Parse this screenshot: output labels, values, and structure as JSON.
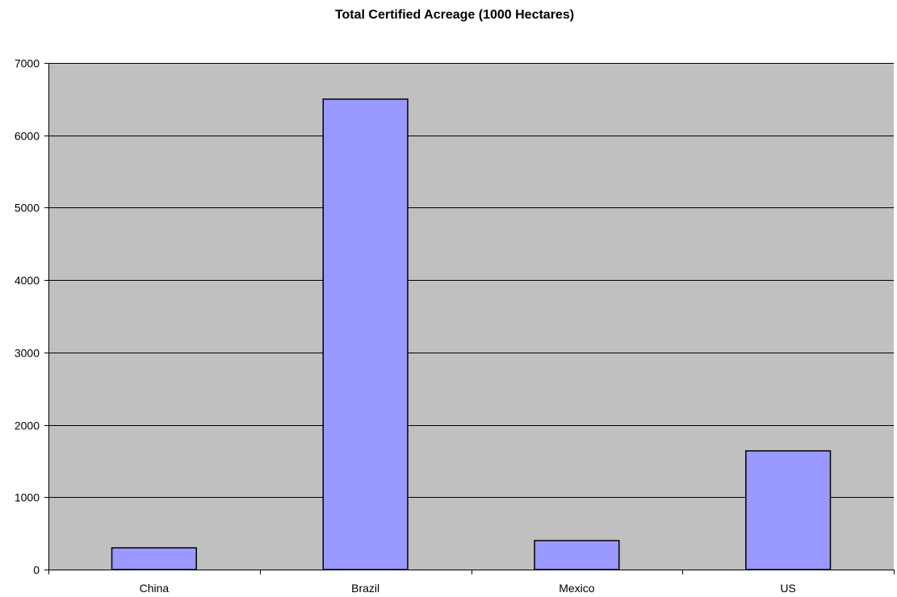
{
  "chart_data": {
    "type": "bar",
    "title": "Total Certified Acreage (1000 Hectares)",
    "xlabel": "",
    "ylabel": "",
    "categories": [
      "China",
      "Brazil",
      "Mexico",
      "US"
    ],
    "values": [
      300,
      6500,
      400,
      1640
    ],
    "ylim": [
      0,
      7000
    ],
    "yticks": [
      "0",
      "1000",
      "2000",
      "3000",
      "4000",
      "5000",
      "6000",
      "7000"
    ],
    "grid": true,
    "legend": "none",
    "colors": {
      "bar_fill": "#9999ff",
      "bar_stroke": "#000000",
      "plot_background": "#c0c0c0",
      "gridline": "#000000"
    }
  }
}
